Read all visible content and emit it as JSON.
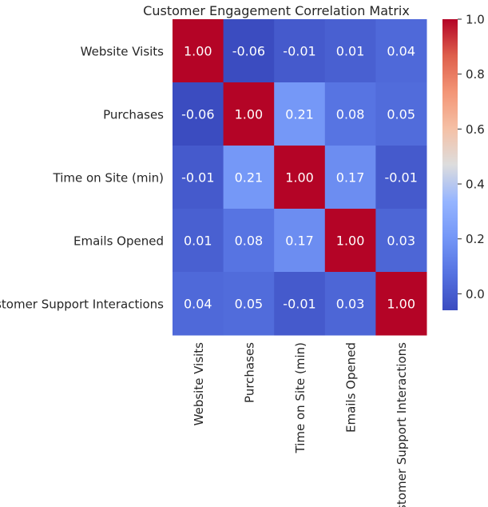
{
  "chart_data": {
    "type": "heatmap",
    "title": "Customer Engagement Correlation Matrix",
    "xlabel": "",
    "ylabel": "",
    "rows": [
      "Website Visits",
      "Purchases",
      "Time on Site (min)",
      "Emails Opened",
      "Customer Support Interactions"
    ],
    "columns": [
      "Website Visits",
      "Purchases",
      "Time on Site (min)",
      "Emails Opened",
      "Customer Support Interactions"
    ],
    "values": [
      [
        1.0,
        -0.06,
        -0.01,
        0.01,
        0.04
      ],
      [
        -0.06,
        1.0,
        0.21,
        0.08,
        0.05
      ],
      [
        -0.01,
        0.21,
        1.0,
        0.17,
        -0.01
      ],
      [
        0.01,
        0.08,
        0.17,
        1.0,
        0.03
      ],
      [
        0.04,
        0.05,
        -0.01,
        0.03,
        1.0
      ]
    ],
    "annotation_format": "0.00",
    "colormap": "coolwarm",
    "color_range": [
      -0.06,
      1.0
    ],
    "colorbar_ticks": [
      "0.0",
      "0.2",
      "0.4",
      "0.6",
      "0.8",
      "1.0"
    ],
    "colorbar_tick_values": [
      0.0,
      0.2,
      0.4,
      0.6,
      0.8,
      1.0
    ],
    "annotation_color": "#ffffff",
    "text_color": "#262626"
  }
}
